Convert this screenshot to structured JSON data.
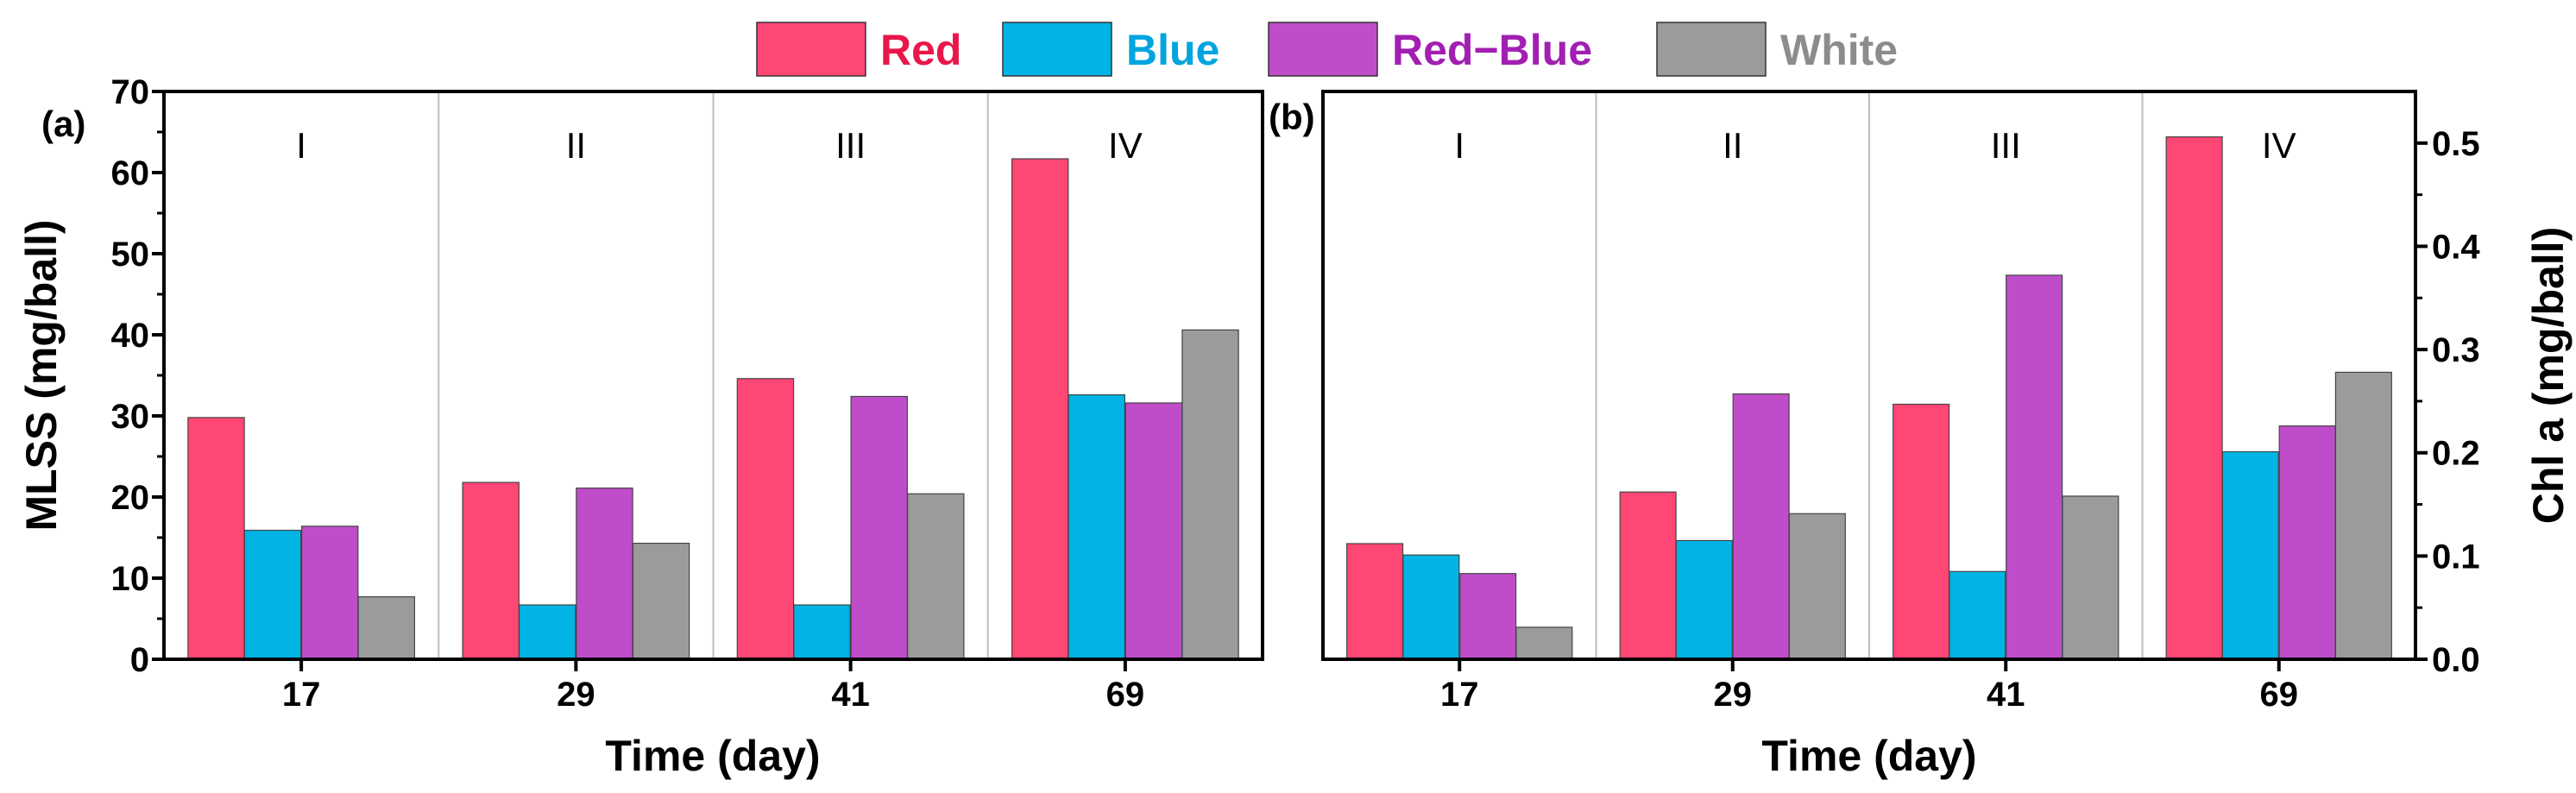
{
  "legend": [
    {
      "label": "Red",
      "fill": "#ff4775",
      "text_color": "#e8174a"
    },
    {
      "label": "Blue",
      "fill": "#00b4e6",
      "text_color": "#00a5de"
    },
    {
      "label": "Red−Blue",
      "fill": "#bf4dca",
      "text_color": "#a21fb2"
    },
    {
      "label": "White",
      "fill": "#9b9b9b",
      "text_color": "#8c8c8c"
    }
  ],
  "chart_data": [
    {
      "type": "bar",
      "panel_label": "(a)",
      "categories": [
        "17",
        "29",
        "41",
        "69"
      ],
      "group_labels": [
        "I",
        "II",
        "III",
        "IV"
      ],
      "series": [
        {
          "name": "Red",
          "values": [
            29.8,
            21.8,
            34.6,
            61.7
          ]
        },
        {
          "name": "Blue",
          "values": [
            15.9,
            6.7,
            6.7,
            32.6
          ]
        },
        {
          "name": "Red−Blue",
          "values": [
            16.4,
            21.1,
            32.4,
            31.6
          ]
        },
        {
          "name": "White",
          "values": [
            7.7,
            14.3,
            20.4,
            40.6
          ]
        }
      ],
      "xlabel": "Time (day)",
      "ylabel": "MLSS (mg/ball)",
      "ylim": [
        0,
        70
      ],
      "yticks": [
        "0",
        "10",
        "20",
        "30",
        "40",
        "50",
        "60",
        "70"
      ],
      "y_axis_side": "left"
    },
    {
      "type": "bar",
      "panel_label": "(b)",
      "categories": [
        "17",
        "29",
        "41",
        "69"
      ],
      "group_labels": [
        "I",
        "II",
        "III",
        "IV"
      ],
      "series": [
        {
          "name": "Red",
          "values": [
            0.112,
            0.162,
            0.247,
            0.506
          ]
        },
        {
          "name": "Blue",
          "values": [
            0.101,
            0.115,
            0.085,
            0.201
          ]
        },
        {
          "name": "Red−Blue",
          "values": [
            0.083,
            0.257,
            0.372,
            0.226
          ]
        },
        {
          "name": "White",
          "values": [
            0.031,
            0.141,
            0.158,
            0.278
          ]
        }
      ],
      "xlabel": "Time (day)",
      "ylabel": "Chl a (mg/ball)",
      "ylim": [
        0,
        0.55
      ],
      "yticks": [
        "0.0",
        "0.1",
        "0.2",
        "0.3",
        "0.4",
        "0.5"
      ],
      "y_axis_side": "right"
    }
  ]
}
